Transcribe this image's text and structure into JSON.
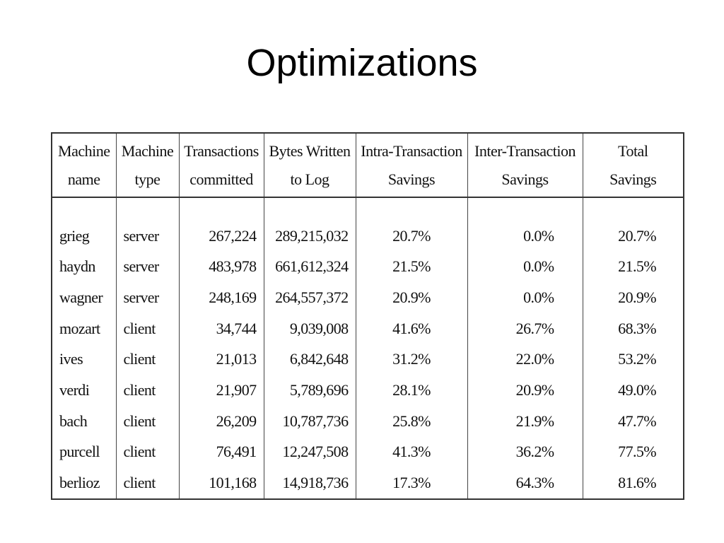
{
  "slide": {
    "title": "Optimizations"
  },
  "table": {
    "headers": [
      [
        "Machine",
        "name"
      ],
      [
        "Machine",
        "type"
      ],
      [
        "Transactions",
        "committed"
      ],
      [
        "Bytes Written",
        "to Log"
      ],
      [
        "Intra-Transaction",
        "Savings"
      ],
      [
        "Inter-Transaction",
        "Savings"
      ],
      [
        "Total",
        "Savings"
      ]
    ],
    "rows": [
      [
        "grieg",
        "server",
        "267,224",
        "289,215,032",
        "20.7%",
        "0.0%",
        "20.7%"
      ],
      [
        "haydn",
        "server",
        "483,978",
        "661,612,324",
        "21.5%",
        "0.0%",
        "21.5%"
      ],
      [
        "wagner",
        "server",
        "248,169",
        "264,557,372",
        "20.9%",
        "0.0%",
        "20.9%"
      ],
      [
        "mozart",
        "client",
        "34,744",
        "9,039,008",
        "41.6%",
        "26.7%",
        "68.3%"
      ],
      [
        "ives",
        "client",
        "21,013",
        "6,842,648",
        "31.2%",
        "22.0%",
        "53.2%"
      ],
      [
        "verdi",
        "client",
        "21,907",
        "5,789,696",
        "28.1%",
        "20.9%",
        "49.0%"
      ],
      [
        "bach",
        "client",
        "26,209",
        "10,787,736",
        "25.8%",
        "21.9%",
        "47.7%"
      ],
      [
        "purcell",
        "client",
        "76,491",
        "12,247,508",
        "41.3%",
        "36.2%",
        "77.5%"
      ],
      [
        "berlioz",
        "client",
        "101,168",
        "14,918,736",
        "17.3%",
        "64.3%",
        "81.6%"
      ]
    ]
  }
}
